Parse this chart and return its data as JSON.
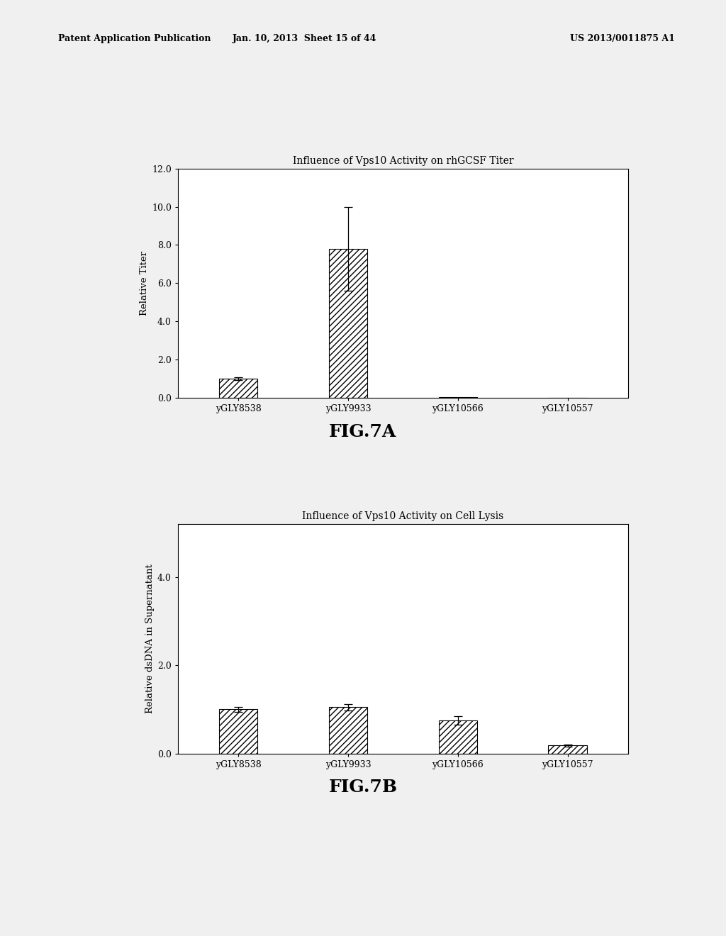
{
  "fig7a": {
    "title": "Influence of Vps10 Activity on rhGCSF Titer",
    "categories": [
      "yGLY8538",
      "yGLY9933",
      "yGLY10566",
      "yGLY10557"
    ],
    "values": [
      1.0,
      7.8,
      0.02,
      0.01
    ],
    "errors": [
      0.08,
      2.2,
      0.0,
      0.0
    ],
    "ylabel": "Relative Titer",
    "ylim": [
      0,
      12.0
    ],
    "yticks": [
      0.0,
      2.0,
      4.0,
      6.0,
      8.0,
      10.0,
      12.0
    ],
    "figcaption": "FIG.7A"
  },
  "fig7b": {
    "title": "Influence of Vps10 Activity on Cell Lysis",
    "categories": [
      "yGLY8538",
      "yGLY9933",
      "yGLY10566",
      "yGLY10557"
    ],
    "values": [
      1.0,
      1.05,
      0.75,
      0.18
    ],
    "errors": [
      0.05,
      0.07,
      0.09,
      0.03
    ],
    "ylabel": "Relative dsDNA in Supernatant",
    "ylim": [
      0,
      5.2
    ],
    "yticks": [
      0.0,
      2.0,
      4.0
    ],
    "figcaption": "FIG.7B"
  },
  "bar_color": "#ffffff",
  "hatch_pattern": "////",
  "background_color": "#f0f0f0",
  "page_background": "#e8e8e8",
  "header_left": "Patent Application Publication",
  "header_mid": "Jan. 10, 2013  Sheet 15 of 44",
  "header_right": "US 2013/0011875 A1"
}
